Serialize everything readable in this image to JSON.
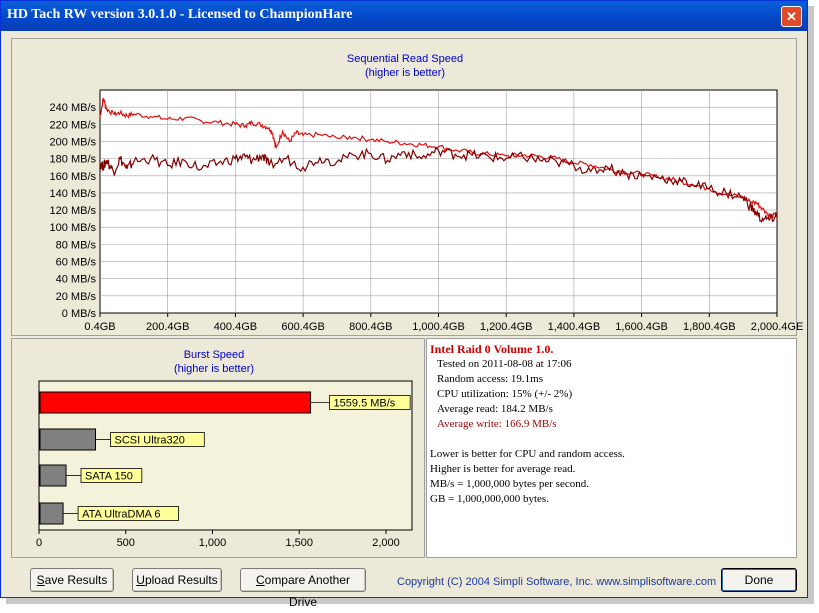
{
  "window": {
    "title": "HD Tach RW version 3.0.1.0 - Licensed to ChampionHare",
    "close_icon": "close-icon"
  },
  "sequential_chart": {
    "title": "Sequential Read Speed",
    "subtitle": "(higher is better)",
    "colors": {
      "read": "#e01010",
      "write": "#800000",
      "grid": "#a0a0a0",
      "background": "#ffffff"
    }
  },
  "burst_chart": {
    "title": "Burst Speed",
    "subtitle": "(higher is better)"
  },
  "chart_data": [
    {
      "type": "line",
      "title": "Sequential Read Speed",
      "subtitle": "(higher is better)",
      "xlabel": "",
      "ylabel": "",
      "x_ticks": [
        "0.4GB",
        "200.4GB",
        "400.4GB",
        "600.4GB",
        "800.4GB",
        "1,000.4GB",
        "1,200.4GB",
        "1,400.4GB",
        "1,600.4GB",
        "1,800.4GB",
        "2,000.4GE"
      ],
      "y_ticks": [
        "0 MB/s",
        "20 MB/s",
        "40 MB/s",
        "60 MB/s",
        "80 MB/s",
        "100 MB/s",
        "120 MB/s",
        "140 MB/s",
        "160 MB/s",
        "180 MB/s",
        "200 MB/s",
        "220 MB/s",
        "240 MB/s"
      ],
      "xlim": [
        0.4,
        2000.4
      ],
      "ylim": [
        0,
        260
      ],
      "grid": true,
      "series": [
        {
          "color": "#e01010",
          "x": [
            0,
            10,
            20,
            40,
            60,
            80,
            100,
            150,
            200,
            250,
            300,
            350,
            400,
            430,
            450,
            480,
            500,
            510,
            520,
            540,
            560,
            580,
            600,
            650,
            700,
            750,
            800,
            850,
            900,
            950,
            1000,
            1050,
            1100,
            1150,
            1200,
            1250,
            1300,
            1350,
            1400,
            1450,
            1500,
            1550,
            1600,
            1650,
            1700,
            1750,
            1800,
            1850,
            1900,
            1920,
            1940,
            1960,
            1980,
            2000
          ],
          "y": [
            228,
            250,
            238,
            232,
            233,
            230,
            232,
            229,
            226,
            227,
            224,
            222,
            220,
            218,
            222,
            219,
            216,
            210,
            192,
            212,
            200,
            210,
            207,
            208,
            204,
            205,
            202,
            200,
            198,
            196,
            194,
            190,
            187,
            185,
            183,
            184,
            183,
            180,
            175,
            173,
            168,
            165,
            162,
            158,
            155,
            150,
            145,
            138,
            135,
            130,
            128,
            122,
            112,
            115
          ]
        },
        {
          "color": "#800000",
          "x": [
            0,
            10,
            20,
            40,
            60,
            80,
            100,
            150,
            200,
            250,
            300,
            350,
            400,
            430,
            450,
            480,
            500,
            550,
            600,
            650,
            700,
            750,
            800,
            850,
            900,
            950,
            1000,
            1050,
            1100,
            1150,
            1200,
            1250,
            1300,
            1350,
            1400,
            1450,
            1500,
            1550,
            1600,
            1650,
            1700,
            1750,
            1800,
            1850,
            1900,
            1920,
            1940,
            1960,
            1980,
            2000
          ],
          "y": [
            175,
            170,
            178,
            165,
            180,
            168,
            176,
            180,
            172,
            178,
            168,
            175,
            180,
            182,
            178,
            184,
            172,
            180,
            170,
            181,
            176,
            184,
            186,
            178,
            188,
            180,
            190,
            185,
            184,
            182,
            180,
            182,
            178,
            176,
            172,
            165,
            170,
            162,
            160,
            158,
            155,
            150,
            145,
            140,
            135,
            125,
            115,
            108,
            110,
            112
          ]
        }
      ]
    },
    {
      "type": "bar",
      "orientation": "horizontal",
      "title": "Burst Speed",
      "subtitle": "(higher is better)",
      "categories": [
        "1559.5 MB/s",
        "SCSI Ultra320",
        "SATA 150",
        "ATA UltraDMA 6"
      ],
      "values": [
        1559.5,
        320,
        150,
        133
      ],
      "bar_colors": [
        "#ff0000",
        "#808080",
        "#808080",
        "#808080"
      ],
      "x_ticks": [
        "0",
        "500",
        "1,000",
        "1,500",
        "2,000"
      ],
      "xlim": [
        0,
        2150
      ],
      "grid": false
    }
  ],
  "info": {
    "heading": "Intel Raid 0 Volume 1.0.",
    "tested": "Tested on 2011-08-08 at 17:06",
    "random_access": "Random access: 19.1ms",
    "cpu": "CPU utilization: 15% (+/- 2%)",
    "avg_read": "Average read: 184.2 MB/s",
    "avg_write": "Average write: 166.9 MB/s",
    "note1": "Lower is better for CPU and random access.",
    "note2": "Higher is better for average read.",
    "note3": "MB/s = 1,000,000 bytes per second.",
    "note4": "GB = 1,000,000,000 bytes.",
    "colors": {
      "heading": "#cc0000",
      "write": "#990000"
    }
  },
  "buttons": {
    "save": {
      "mnemonic": "S",
      "rest": "ave Results"
    },
    "upload": {
      "mnemonic": "U",
      "rest": "pload Results"
    },
    "compare": {
      "mnemonic": "C",
      "rest": "ompare Another Drive"
    },
    "done": "Done"
  },
  "footer": {
    "copyright": "Copyright (C) 2004 Simpli Software, Inc. www.simplisoftware.com"
  }
}
